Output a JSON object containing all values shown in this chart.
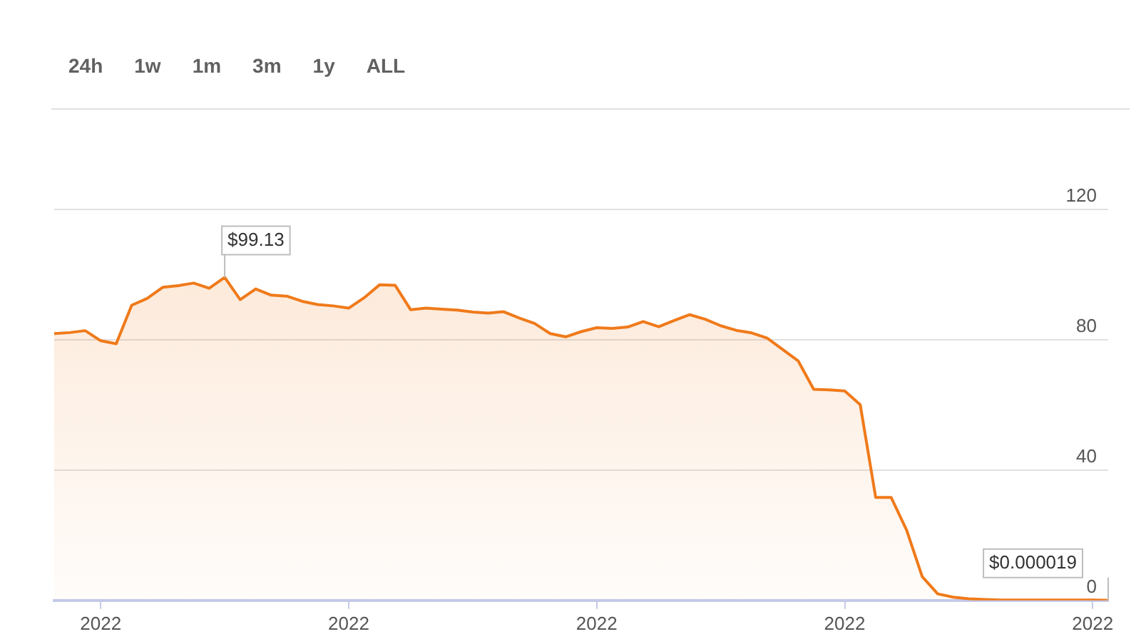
{
  "chart_data": {
    "type": "area",
    "categories": [
      null,
      null,
      null,
      "2022",
      null,
      null,
      null,
      null,
      null,
      null,
      null,
      null,
      null,
      null,
      null,
      null,
      null,
      null,
      null,
      "2022",
      null,
      null,
      null,
      null,
      null,
      null,
      null,
      null,
      null,
      null,
      null,
      null,
      null,
      null,
      null,
      "2022",
      null,
      null,
      null,
      null,
      null,
      null,
      null,
      null,
      null,
      null,
      null,
      null,
      null,
      null,
      null,
      "2022",
      null,
      null,
      null,
      null,
      null,
      null,
      null,
      null,
      null,
      null,
      null,
      null,
      null,
      null,
      null,
      "2022",
      null
    ],
    "series": [
      {
        "color": "#f07a1a",
        "values": [
          81.9,
          82.2,
          82.8,
          79.7,
          78.8,
          90.6,
          92.7,
          96.1,
          96.6,
          97.4,
          95.8,
          99.13,
          92.3,
          95.6,
          93.7,
          93.4,
          91.8,
          90.8,
          90.4,
          89.7,
          92.9,
          96.9,
          96.7,
          89.2,
          89.7,
          89.4,
          89.1,
          88.5,
          88.2,
          88.6,
          86.7,
          85.0,
          81.9,
          80.9,
          82.5,
          83.7,
          83.5,
          83.9,
          85.6,
          84.0,
          85.9,
          87.7,
          86.3,
          84.3,
          82.9,
          82.1,
          80.5,
          77.0,
          73.5,
          64.8,
          64.6,
          64.3,
          60.1,
          31.6,
          31.6,
          21.5,
          7.3,
          2.0,
          1.0,
          0.5,
          0.3,
          0.1,
          0.1,
          0.1,
          0.1,
          0.1,
          0.1,
          0.1,
          1.9e-05
        ]
      }
    ],
    "ylim": [
      0,
      120
    ],
    "yticks": [
      0,
      40,
      80,
      120
    ],
    "grid": "y",
    "legend": false,
    "marker": "none",
    "annotations": [
      "24h",
      "1w",
      "1m",
      "3m",
      "1y",
      "ALL",
      "$99.13",
      "$0.000019"
    ]
  }
}
